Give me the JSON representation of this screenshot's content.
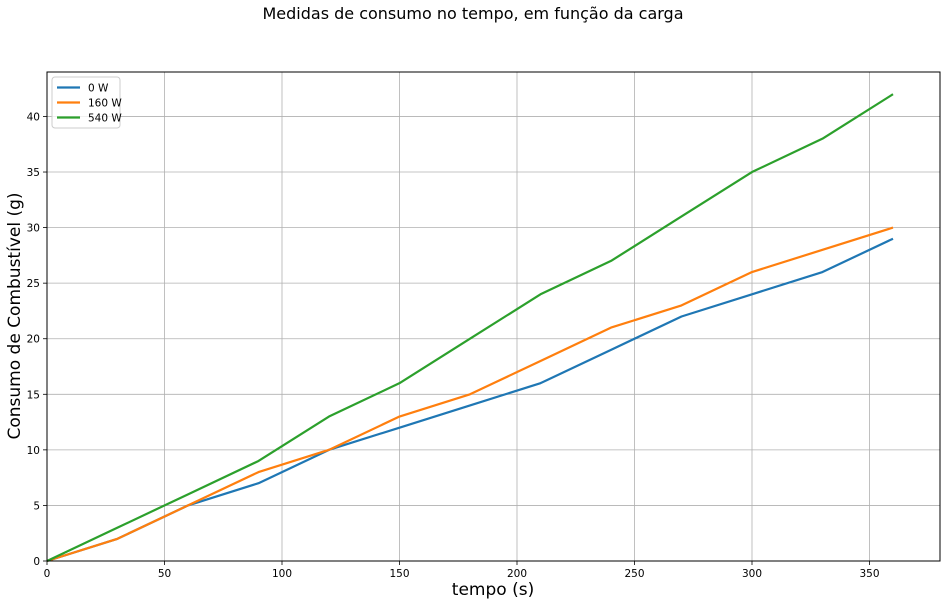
{
  "chart_data": {
    "type": "line",
    "title": "Medidas de consumo no tempo, em função da carga",
    "xlabel": "tempo (s)",
    "ylabel": "Consumo de Combustível (g)",
    "xlim": [
      0,
      380
    ],
    "ylim": [
      0,
      44
    ],
    "xticks": [
      0,
      50,
      100,
      150,
      200,
      250,
      300,
      350
    ],
    "yticks": [
      0,
      5,
      10,
      15,
      20,
      25,
      30,
      35,
      40
    ],
    "grid": true,
    "legend_position": "top-left",
    "x": [
      0,
      30,
      60,
      90,
      120,
      150,
      180,
      210,
      240,
      270,
      300,
      330,
      360
    ],
    "series": [
      {
        "name": "0 W",
        "color": "#1f77b4",
        "values": [
          0,
          2,
          5,
          7,
          10,
          12,
          14,
          16,
          19,
          22,
          24,
          26,
          29
        ]
      },
      {
        "name": "160 W",
        "color": "#ff7f0e",
        "values": [
          0,
          2,
          5,
          8,
          10,
          13,
          15,
          18,
          21,
          23,
          26,
          28,
          30
        ]
      },
      {
        "name": "540 W",
        "color": "#2ca02c",
        "values": [
          0,
          3,
          6,
          9,
          13,
          16,
          20,
          24,
          27,
          31,
          35,
          38,
          42
        ]
      }
    ]
  }
}
